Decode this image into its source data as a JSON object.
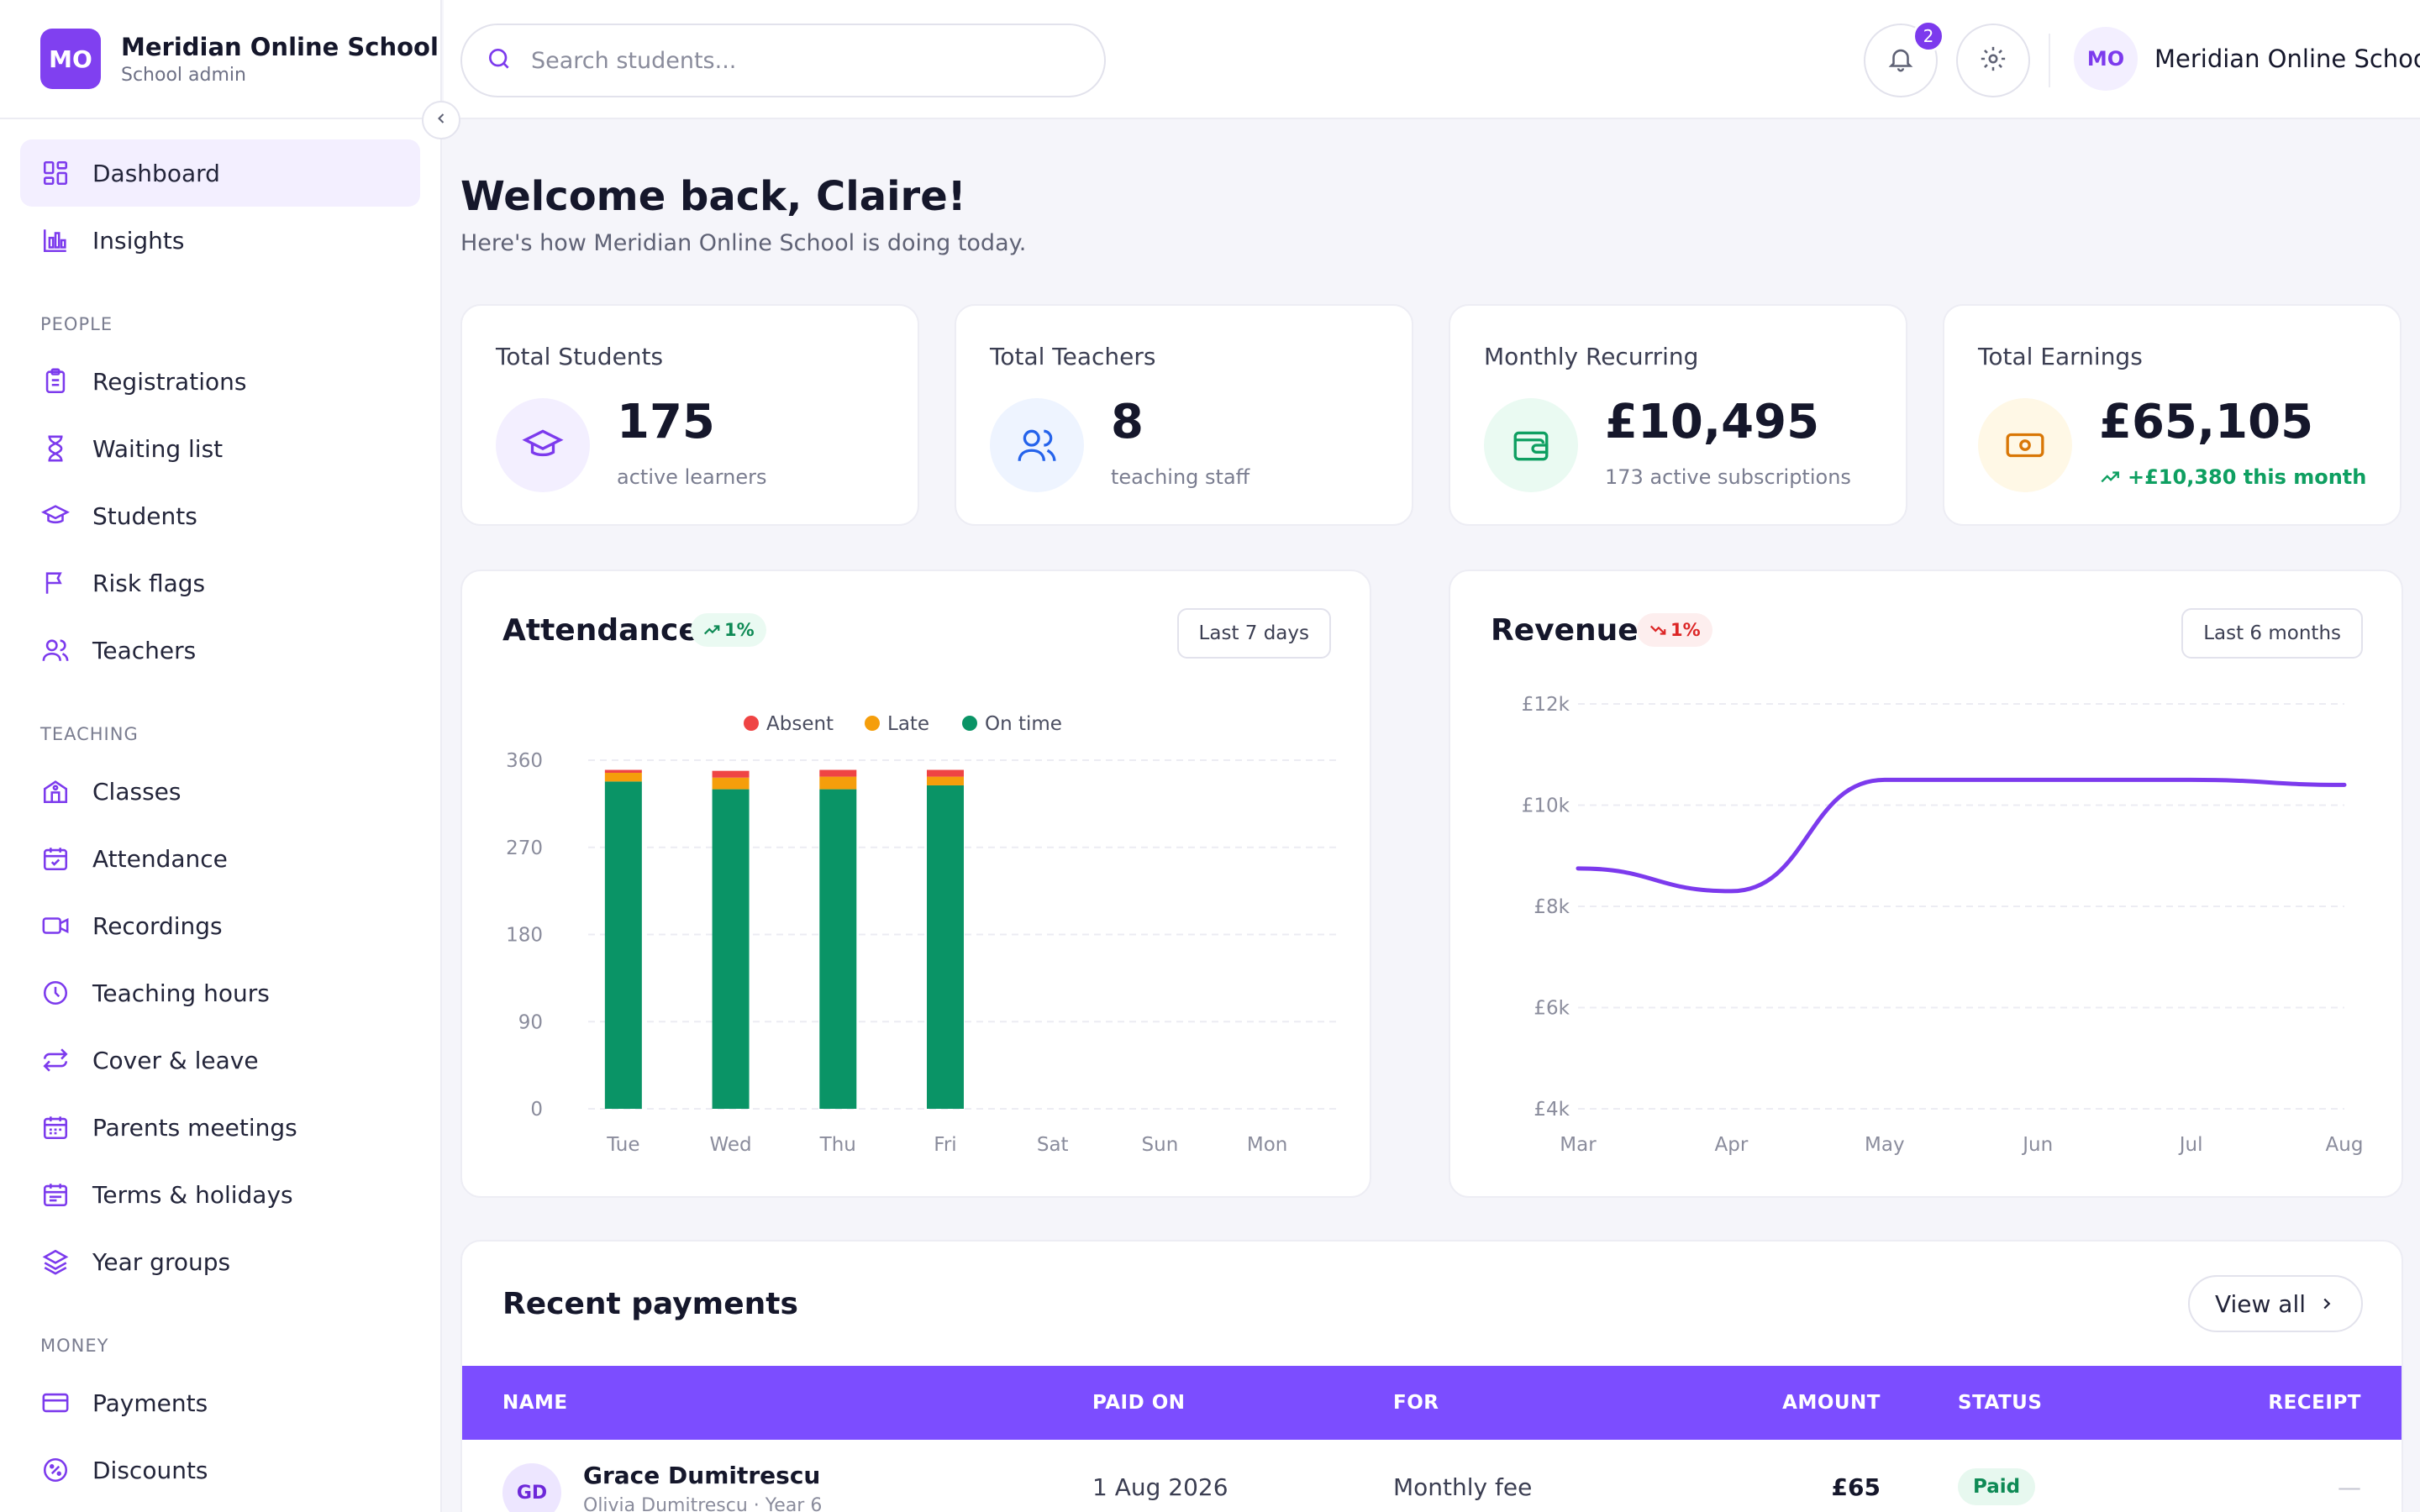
{
  "brand": {
    "initials": "MO",
    "name": "Meridian Online School",
    "role": "School admin"
  },
  "nav": {
    "primary": [
      {
        "label": "Dashboard",
        "icon": "grid-icon",
        "active": true
      },
      {
        "label": "Insights",
        "icon": "bar-chart-icon"
      }
    ],
    "sections": [
      {
        "title": "PEOPLE",
        "items": [
          {
            "label": "Registrations",
            "icon": "clipboard-icon"
          },
          {
            "label": "Waiting list",
            "icon": "hourglass-icon"
          },
          {
            "label": "Students",
            "icon": "graduation-cap-icon"
          },
          {
            "label": "Risk flags",
            "icon": "flag-icon"
          },
          {
            "label": "Teachers",
            "icon": "users-icon"
          }
        ]
      },
      {
        "title": "TEACHING",
        "items": [
          {
            "label": "Classes",
            "icon": "school-icon"
          },
          {
            "label": "Attendance",
            "icon": "calendar-check-icon"
          },
          {
            "label": "Recordings",
            "icon": "video-icon"
          },
          {
            "label": "Teaching hours",
            "icon": "clock-icon"
          },
          {
            "label": "Cover & leave",
            "icon": "swap-icon"
          },
          {
            "label": "Parents meetings",
            "icon": "calendar-icon"
          },
          {
            "label": "Terms & holidays",
            "icon": "calendar-days-icon"
          },
          {
            "label": "Year groups",
            "icon": "layers-icon"
          }
        ]
      },
      {
        "title": "MONEY",
        "items": [
          {
            "label": "Payments",
            "icon": "credit-card-icon"
          },
          {
            "label": "Discounts",
            "icon": "discount-icon"
          }
        ]
      }
    ]
  },
  "header": {
    "search_placeholder": "Search students...",
    "notification_count": "2",
    "user_initials": "MO",
    "user_name": "Meridian Online School"
  },
  "welcome": {
    "title": "Welcome back, Claire!",
    "subtitle": "Here's how Meridian Online School is doing today."
  },
  "stats": [
    {
      "label": "Total Students",
      "value": "175",
      "sub": "active learners",
      "icon": "graduation-cap-icon",
      "color": "#7c3aed",
      "bg": "#f3efff"
    },
    {
      "label": "Total Teachers",
      "value": "8",
      "sub": "teaching staff",
      "icon": "users-icon",
      "color": "#2563eb",
      "bg": "#eef4ff"
    },
    {
      "label": "Monthly Recurring",
      "value": "£10,495",
      "sub": "173 active subscriptions",
      "icon": "wallet-icon",
      "color": "#0e9f61",
      "bg": "#eafaf2"
    },
    {
      "label": "Total Earnings",
      "value": "£65,105",
      "sub": "+£10,380 this month",
      "icon": "cash-icon",
      "color": "#d97706",
      "bg": "#fff8e6"
    }
  ],
  "attendance": {
    "title": "Attendance",
    "trend": "1%",
    "range": "Last 7 days",
    "chart_data": {
      "type": "bar",
      "stacked": true,
      "categories": [
        "Tue",
        "Wed",
        "Thu",
        "Fri",
        "Sat",
        "Sun",
        "Mon"
      ],
      "series": [
        {
          "name": "On time",
          "color": "#0a9466",
          "values": [
            338,
            330,
            330,
            334,
            0,
            0,
            0
          ]
        },
        {
          "name": "Late",
          "color": "#f59e0b",
          "values": [
            9,
            12,
            13,
            9,
            0,
            0,
            0
          ]
        },
        {
          "name": "Absent",
          "color": "#ef4444",
          "values": [
            3,
            7,
            7,
            7,
            0,
            0,
            0
          ]
        }
      ],
      "legend_order": [
        "Absent",
        "Late",
        "On time"
      ],
      "yticks": [
        "0",
        "90",
        "180",
        "270",
        "360"
      ],
      "ylim": [
        0,
        360
      ]
    }
  },
  "revenue": {
    "title": "Revenue",
    "trend": "1%",
    "range": "Last 6 months",
    "chart_data": {
      "type": "line",
      "categories": [
        "Mar",
        "Apr",
        "May",
        "Jun",
        "Jul",
        "Aug"
      ],
      "series": [
        {
          "color": "#7c3aed",
          "values": [
            8750,
            8300,
            10500,
            10500,
            10500,
            10400
          ]
        }
      ],
      "yticks": [
        "£4k",
        "£6k",
        "£8k",
        "£10k",
        "£12k"
      ],
      "ylim": [
        4000,
        12000
      ]
    }
  },
  "payments": {
    "title": "Recent payments",
    "view_all": "View all",
    "columns": {
      "name": "NAME",
      "paid_on": "PAID ON",
      "for": "FOR",
      "amount": "AMOUNT",
      "status": "STATUS",
      "receipt": "RECEIPT"
    },
    "rows": [
      {
        "initials": "GD",
        "name": "Grace Dumitrescu",
        "detail": "Olivia Dumitrescu · Year 6",
        "paid_on": "1 Aug 2026",
        "for": "Monthly fee",
        "amount": "£65",
        "status": "Paid",
        "receipt": "—"
      }
    ]
  }
}
